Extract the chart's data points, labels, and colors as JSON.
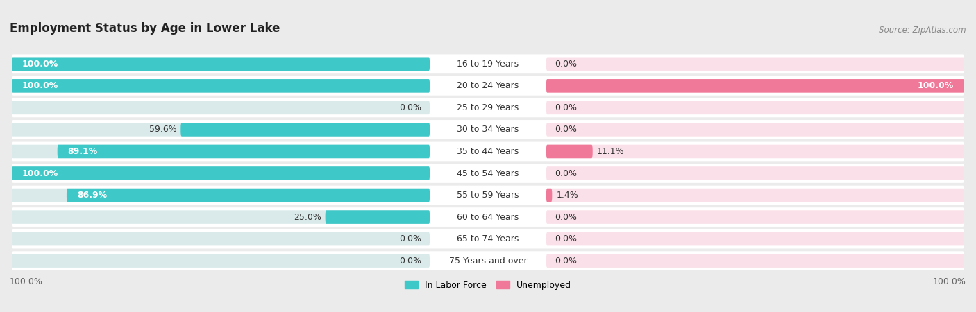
{
  "title": "Employment Status by Age in Lower Lake",
  "source": "Source: ZipAtlas.com",
  "categories": [
    "16 to 19 Years",
    "20 to 24 Years",
    "25 to 29 Years",
    "30 to 34 Years",
    "35 to 44 Years",
    "45 to 54 Years",
    "55 to 59 Years",
    "60 to 64 Years",
    "65 to 74 Years",
    "75 Years and over"
  ],
  "labor_force": [
    100.0,
    100.0,
    0.0,
    59.6,
    89.1,
    100.0,
    86.9,
    25.0,
    0.0,
    0.0
  ],
  "unemployed": [
    0.0,
    100.0,
    0.0,
    0.0,
    11.1,
    0.0,
    1.4,
    0.0,
    0.0,
    0.0
  ],
  "color_labor": "#3ec8c8",
  "color_unemployed": "#f07898",
  "color_labor_light": "#a8e6e6",
  "color_unemployed_light": "#f8b8c8",
  "bg_color": "#ebebeb",
  "row_bg_color": "#ffffff",
  "bar_bg_left": "#daeaea",
  "bar_bg_right": "#fae0e8",
  "max_val": 100.0,
  "title_fontsize": 12,
  "label_fontsize": 9,
  "category_fontsize": 9,
  "source_fontsize": 8.5,
  "legend_fontsize": 9
}
